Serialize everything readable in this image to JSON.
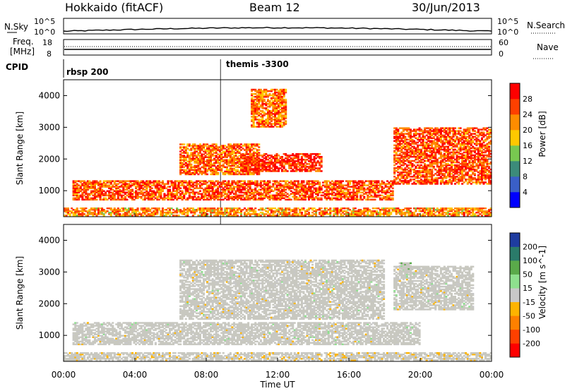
{
  "header": {
    "station": "Hokkaido (fitACF)",
    "beam": "Beam 12",
    "date": "30/Jun/2013"
  },
  "noise_panel": {
    "left_label": "N.Sky",
    "right_label": "N.Search",
    "left_ticks": [
      "10^5",
      "10^0"
    ],
    "right_ticks": [
      "10^5",
      "10^0"
    ]
  },
  "freq_panel": {
    "left_label_1": "Freq.",
    "left_label_2": "[MHz]",
    "left_ticks": [
      "18",
      "8"
    ],
    "right_label": "Nave",
    "right_ticks": [
      "60",
      "0"
    ],
    "freq_value_mhz": 11,
    "nave_value": 21
  },
  "cpid": {
    "label": "CPID",
    "segments": [
      {
        "name": "rbsp 200",
        "start_hour": 0,
        "end_hour": 8.8
      },
      {
        "name": "themis -3300",
        "start_hour": 8.8,
        "end_hour": 24
      }
    ]
  },
  "x_axis": {
    "label": "Time UT",
    "ticks": [
      "00:00",
      "04:00",
      "08:00",
      "12:00",
      "16:00",
      "20:00",
      "00:00"
    ]
  },
  "power_panel": {
    "ylabel": "Slant Range [km]",
    "yticks": [
      "1000",
      "2000",
      "3000",
      "4000"
    ],
    "colorbar_label": "Power [dB]",
    "colorbar_ticks": [
      "4",
      "8",
      "12",
      "16",
      "20",
      "24",
      "28"
    ],
    "colors": [
      "#0000ff",
      "#3a5fc8",
      "#3c8b7a",
      "#78c850",
      "#ffc800",
      "#ff8c00",
      "#ff4000",
      "#ff0000"
    ]
  },
  "velocity_panel": {
    "ylabel": "Slant Range [km]",
    "yticks": [
      "1000",
      "2000",
      "3000",
      "4000"
    ],
    "colorbar_label": "Velocity [m s^-1]",
    "colorbar_ticks": [
      "200",
      "100",
      "50",
      "15",
      "-15",
      "-50",
      "-100",
      "-200"
    ],
    "colors": [
      "#1e3ca0",
      "#2a7a6a",
      "#5aaa4a",
      "#8ee08e",
      "#c8c8c8",
      "#ffb400",
      "#ff8000",
      "#ff4000",
      "#ff0000"
    ],
    "ground_scatter_color": "#c8c8c0"
  },
  "chart_data": {
    "type": "heatmap",
    "x_range_hours": [
      0,
      24
    ],
    "y_range_km": [
      180,
      4500
    ],
    "power_echo_regions_db": [
      {
        "t0": 0,
        "t1": 24,
        "r0": 200,
        "r1": 450,
        "level": 22
      },
      {
        "t0": 0.5,
        "t1": 18.5,
        "r0": 700,
        "r1": 1350,
        "level": 26
      },
      {
        "t0": 6.5,
        "t1": 11,
        "r0": 1500,
        "r1": 2500,
        "level": 24
      },
      {
        "t0": 10,
        "t1": 14.5,
        "r0": 1600,
        "r1": 2200,
        "level": 28
      },
      {
        "t0": 10.5,
        "t1": 12.5,
        "r0": 3000,
        "r1": 4200,
        "level": 24
      },
      {
        "t0": 18.5,
        "t1": 24,
        "r0": 1200,
        "r1": 3000,
        "level": 26
      }
    ],
    "velocity_echo_regions_ms": [
      {
        "t0": 0,
        "t1": 24,
        "r0": 200,
        "r1": 450,
        "level": -30
      },
      {
        "t0": 0.5,
        "t1": 20,
        "r0": 700,
        "r1": 1400,
        "level": 0
      },
      {
        "t0": 6.5,
        "t1": 18,
        "r0": 1500,
        "r1": 3400,
        "level": 0
      },
      {
        "t0": 18.5,
        "t1": 23,
        "r0": 1800,
        "r1": 3200,
        "level": 0
      },
      {
        "t0": 18.8,
        "t1": 19.5,
        "r0": 2900,
        "r1": 3300,
        "level": 60
      }
    ]
  }
}
